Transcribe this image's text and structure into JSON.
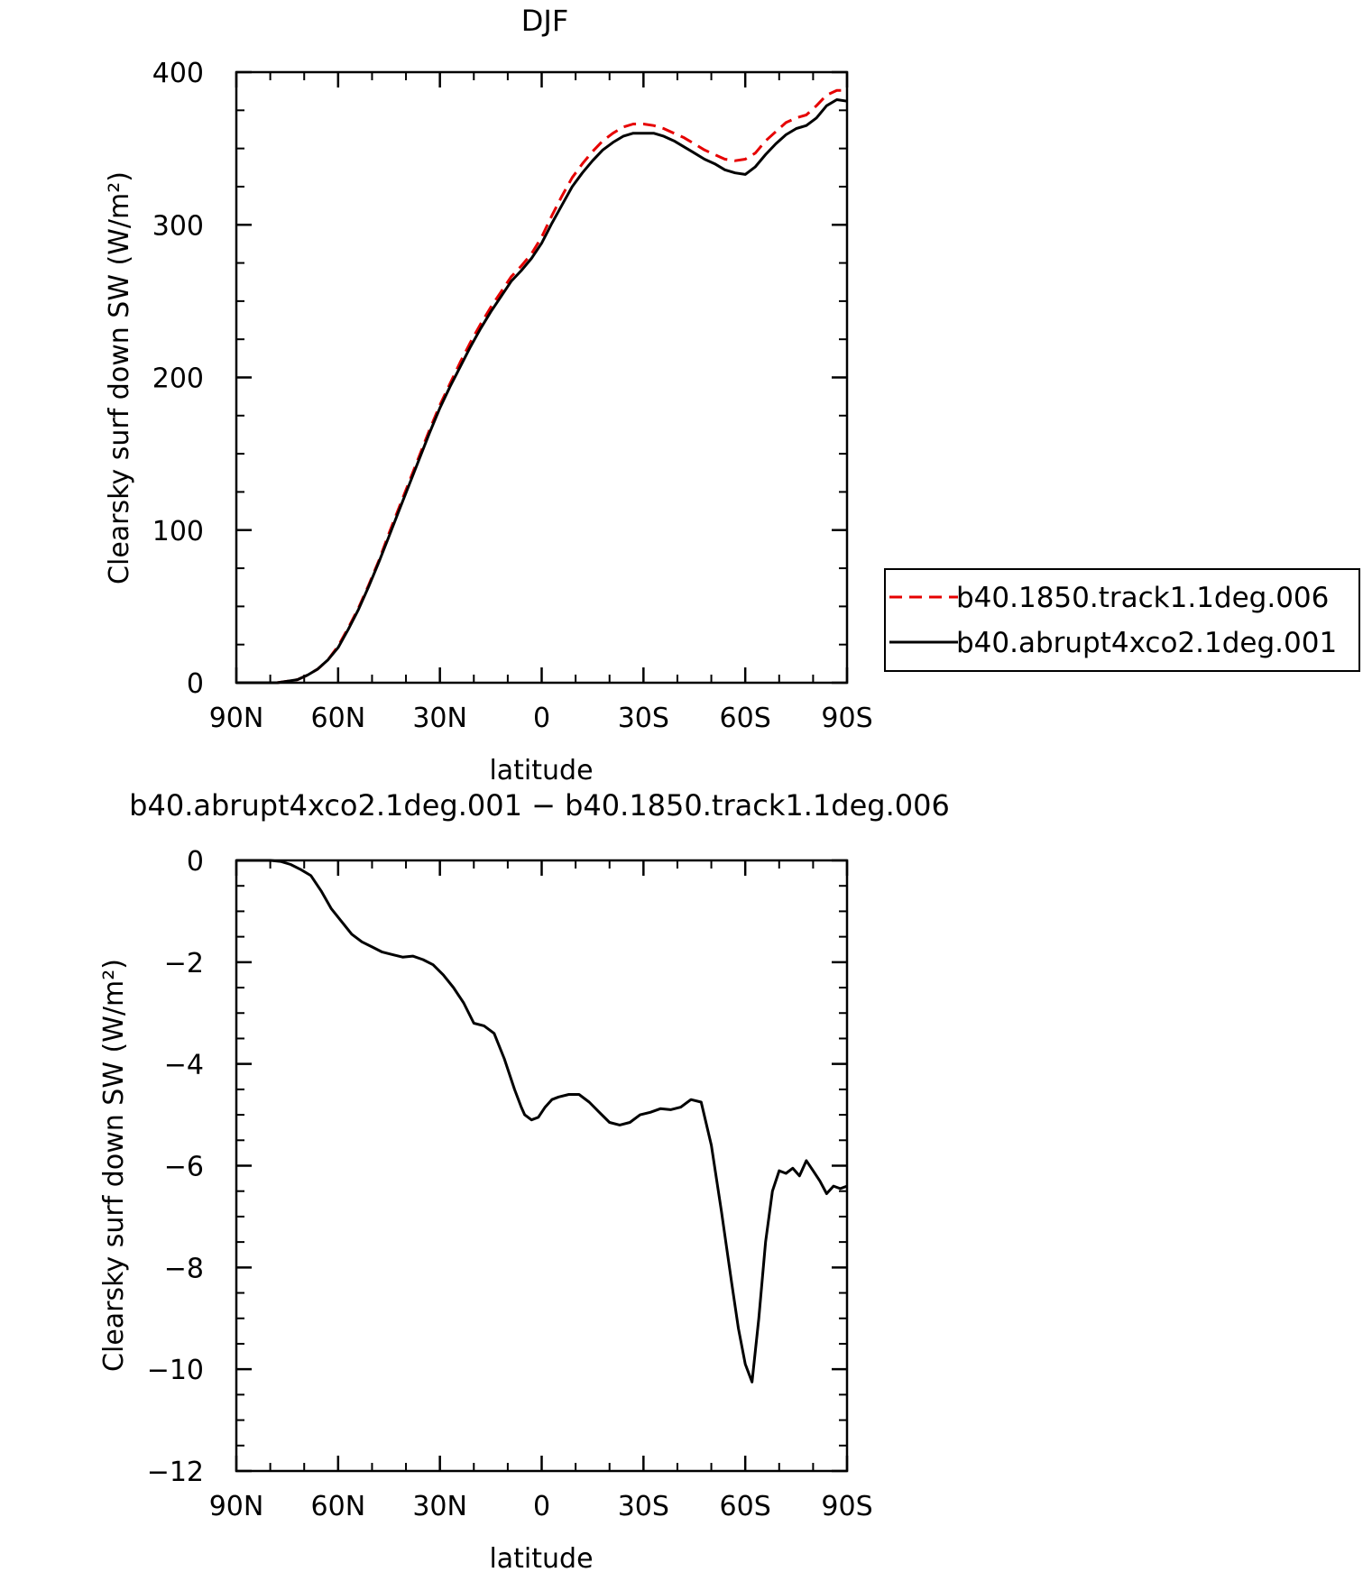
{
  "chart_data": [
    {
      "type": "line",
      "title": "DJF",
      "xlabel": "latitude",
      "ylabel": "Clearsky surf down SW (W/m²)",
      "xlim": [
        -90,
        90
      ],
      "ylim": [
        0,
        400
      ],
      "x_ticks": [
        -90,
        -60,
        -30,
        0,
        30,
        60,
        90
      ],
      "x_tick_labels": [
        "90N",
        "60N",
        "30N",
        "0",
        "30S",
        "60S",
        "90S"
      ],
      "y_ticks": [
        0,
        100,
        200,
        300,
        400
      ],
      "y_tick_labels": [
        "0",
        "100",
        "200",
        "300",
        "400"
      ],
      "legend": {
        "placement": "right",
        "entries": [
          "b40.1850.track1.1deg.006",
          "b40.abrupt4xco2.1deg.001"
        ]
      },
      "series": [
        {
          "name": "b40.1850.track1.1deg.006",
          "color": "#e60000",
          "style": "dashed",
          "x": [
            -90,
            -86,
            -82,
            -78,
            -75,
            -72,
            -69,
            -66,
            -63,
            -60,
            -57,
            -54,
            -51,
            -48,
            -45,
            -42,
            -39,
            -36,
            -33,
            -30,
            -27,
            -24,
            -21,
            -18,
            -15,
            -12,
            -9,
            -6,
            -3,
            0,
            3,
            6,
            9,
            12,
            15,
            18,
            21,
            24,
            27,
            30,
            33,
            36,
            39,
            42,
            45,
            48,
            51,
            54,
            57,
            60,
            63,
            66,
            69,
            72,
            75,
            78,
            81,
            84,
            87,
            90
          ],
          "values": [
            0,
            0,
            0,
            0,
            1,
            2,
            5,
            9,
            15,
            24,
            36,
            49,
            64,
            80,
            98,
            115,
            132,
            149,
            166,
            182,
            196,
            210,
            223,
            235,
            246,
            256,
            266,
            273,
            281,
            292,
            306,
            319,
            331,
            340,
            348,
            355,
            360,
            364,
            366,
            366,
            365,
            363,
            360,
            357,
            353,
            349,
            346,
            343,
            342,
            343,
            347,
            355,
            361,
            367,
            370,
            372,
            378,
            385,
            388,
            388
          ]
        },
        {
          "name": "b40.abrupt4xco2.1deg.001",
          "color": "#000000",
          "style": "solid",
          "x": [
            -90,
            -86,
            -82,
            -78,
            -75,
            -72,
            -69,
            -66,
            -63,
            -60,
            -57,
            -54,
            -51,
            -48,
            -45,
            -42,
            -39,
            -36,
            -33,
            -30,
            -27,
            -24,
            -21,
            -18,
            -15,
            -12,
            -9,
            -6,
            -3,
            0,
            3,
            6,
            9,
            12,
            15,
            18,
            21,
            24,
            27,
            30,
            33,
            36,
            39,
            42,
            45,
            48,
            51,
            54,
            57,
            60,
            63,
            66,
            69,
            72,
            75,
            78,
            81,
            84,
            87,
            90
          ],
          "values": [
            0,
            0,
            0,
            0,
            1,
            2,
            5,
            9,
            15,
            23,
            35,
            48,
            63,
            79,
            96,
            113,
            130,
            147,
            164,
            180,
            194,
            207,
            220,
            232,
            243,
            253,
            263,
            270,
            278,
            288,
            301,
            313,
            325,
            334,
            342,
            349,
            354,
            358,
            360,
            360,
            360,
            358,
            355,
            351,
            347,
            343,
            340,
            336,
            334,
            333,
            338,
            346,
            353,
            359,
            363,
            365,
            370,
            378,
            382,
            381
          ]
        }
      ]
    },
    {
      "type": "line",
      "title": "b40.abrupt4xco2.1deg.001 − b40.1850.track1.1deg.006",
      "xlabel": "latitude",
      "ylabel": "Clearsky surf down SW (W/m²)",
      "xlim": [
        -90,
        90
      ],
      "ylim": [
        -12,
        0
      ],
      "x_ticks": [
        -90,
        -60,
        -30,
        0,
        30,
        60,
        90
      ],
      "x_tick_labels": [
        "90N",
        "60N",
        "30N",
        "0",
        "30S",
        "60S",
        "90S"
      ],
      "y_ticks": [
        0,
        -2,
        -4,
        -6,
        -8,
        -10,
        -12
      ],
      "y_tick_labels": [
        "0",
        "−2",
        "−4",
        "−6",
        "−8",
        "−10",
        "−12"
      ],
      "series": [
        {
          "color": "#000000",
          "style": "solid",
          "x": [
            -90,
            -85,
            -80,
            -77,
            -74,
            -71,
            -68,
            -65,
            -62,
            -59,
            -56,
            -53,
            -50,
            -47,
            -44,
            -41,
            -38,
            -35,
            -32,
            -29,
            -26,
            -23,
            -20,
            -17,
            -14,
            -11,
            -8,
            -6,
            -5,
            -3,
            -1,
            1,
            3,
            5,
            8,
            11,
            14,
            17,
            20,
            23,
            26,
            29,
            32,
            35,
            38,
            41,
            44,
            47,
            50,
            53,
            56,
            58,
            60,
            62,
            64,
            66,
            68,
            70,
            72,
            74,
            76,
            78,
            80,
            82,
            84,
            86,
            88,
            90
          ],
          "values": [
            0,
            0,
            0,
            -0.02,
            -0.08,
            -0.18,
            -0.3,
            -0.6,
            -0.95,
            -1.2,
            -1.45,
            -1.6,
            -1.7,
            -1.8,
            -1.85,
            -1.9,
            -1.88,
            -1.95,
            -2.05,
            -2.25,
            -2.5,
            -2.8,
            -3.2,
            -3.25,
            -3.4,
            -3.9,
            -4.5,
            -4.85,
            -5.0,
            -5.1,
            -5.05,
            -4.85,
            -4.7,
            -4.65,
            -4.6,
            -4.6,
            -4.75,
            -4.95,
            -5.15,
            -5.2,
            -5.15,
            -5.0,
            -4.95,
            -4.88,
            -4.9,
            -4.85,
            -4.7,
            -4.75,
            -5.6,
            -6.9,
            -8.3,
            -9.2,
            -9.9,
            -10.25,
            -9.0,
            -7.5,
            -6.5,
            -6.1,
            -6.15,
            -6.05,
            -6.2,
            -5.9,
            -6.1,
            -6.3,
            -6.55,
            -6.4,
            -6.45,
            -6.4
          ]
        }
      ]
    }
  ]
}
